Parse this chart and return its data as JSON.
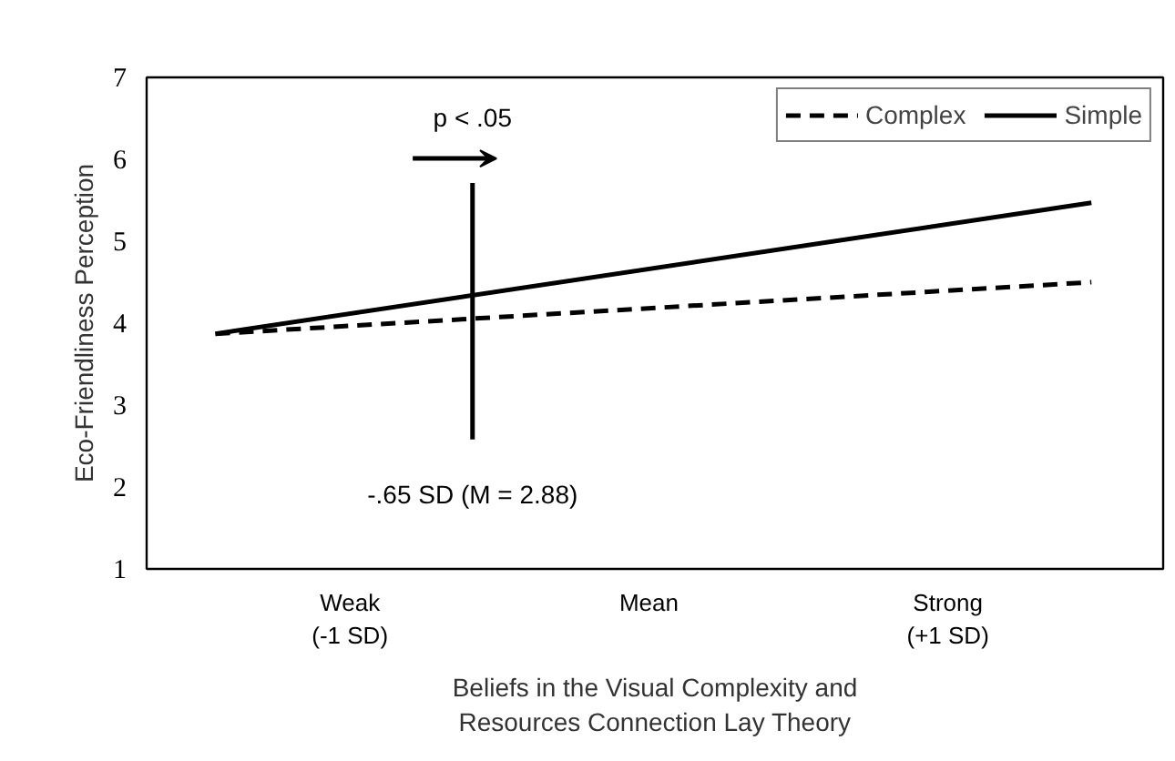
{
  "chart_data": {
    "type": "line",
    "xlabel": "Beliefs in the Visual Complexity and\nResources Connection Lay Theory",
    "ylabel": "Eco-Friendliness Perception",
    "xlim": [
      -1.68,
      1.72
    ],
    "xticks": [
      {
        "value": -1,
        "label": "Weak\n(-1 SD)"
      },
      {
        "value": 0,
        "label": "Mean"
      },
      {
        "value": 1,
        "label": "Strong\n(+1 SD)"
      }
    ],
    "ylim": [
      1,
      7
    ],
    "yticks": [
      1,
      2,
      3,
      4,
      5,
      6,
      7
    ],
    "series": [
      {
        "name": "Complex",
        "color": "#000000",
        "line_style": "dashed",
        "x": [
          -1.45,
          1.48
        ],
        "values": [
          3.87,
          4.5
        ]
      },
      {
        "name": "Simple",
        "color": "#000000",
        "line_style": "solid",
        "x": [
          -1.45,
          1.48
        ],
        "values": [
          3.87,
          5.47
        ]
      },
      {
        "color": "#000000",
        "line_style": "solid",
        "x": [
          -0.59,
          -0.59
        ],
        "values": [
          2.58,
          5.71
        ]
      }
    ],
    "annotations": [
      "-.65 SD (M = 2.88)",
      "p < .05"
    ],
    "grid": false,
    "legend": "top right"
  }
}
